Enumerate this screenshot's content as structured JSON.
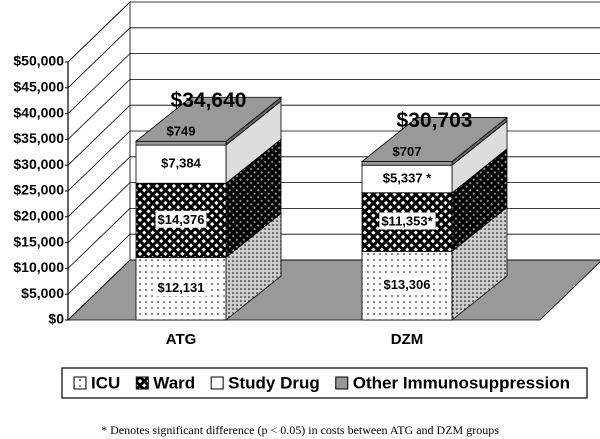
{
  "chart_data": {
    "type": "bar3d_stacked",
    "categories": [
      "ATG",
      "DZM"
    ],
    "series": [
      {
        "name": "ICU",
        "color": "#ffffff",
        "pattern": "dots",
        "values": [
          12131,
          13306
        ],
        "value_labels": [
          "$12,131",
          "$13,306"
        ]
      },
      {
        "name": "Ward",
        "color": "#000000",
        "pattern": "crosshatch",
        "values": [
          14376,
          11353
        ],
        "value_labels": [
          "$14,376",
          "$11,353*"
        ]
      },
      {
        "name": "Study Drug",
        "color": "#ffffff",
        "pattern": "solid",
        "values": [
          7384,
          5337
        ],
        "value_labels": [
          "$7,384",
          "$5,337 *"
        ]
      },
      {
        "name": "Other Immunosuppression",
        "color": "#999999",
        "pattern": "solid",
        "values": [
          749,
          707
        ],
        "value_labels": [
          "$749",
          "$707"
        ]
      }
    ],
    "totals": [
      34640,
      30703
    ],
    "total_labels": [
      "$34,640",
      "$30,703"
    ],
    "ylim": [
      0,
      50000
    ],
    "yticks": [
      {
        "value": 0,
        "label": "$0"
      },
      {
        "value": 5000,
        "label": "$5,000"
      },
      {
        "value": 10000,
        "label": "$10,000"
      },
      {
        "value": 15000,
        "label": "$15,000"
      },
      {
        "value": 20000,
        "label": "$20,000"
      },
      {
        "value": 25000,
        "label": "$25,000"
      },
      {
        "value": 30000,
        "label": "$30,000"
      },
      {
        "value": 35000,
        "label": "$35,000"
      },
      {
        "value": 40000,
        "label": "$40,000"
      },
      {
        "value": 45000,
        "label": "$45,000"
      },
      {
        "value": 50000,
        "label": "$50,000"
      }
    ],
    "grid": true,
    "legend": "bottom",
    "footnote": "* Denotes significant difference (p < 0.05) in costs between ATG and DZM groups"
  }
}
